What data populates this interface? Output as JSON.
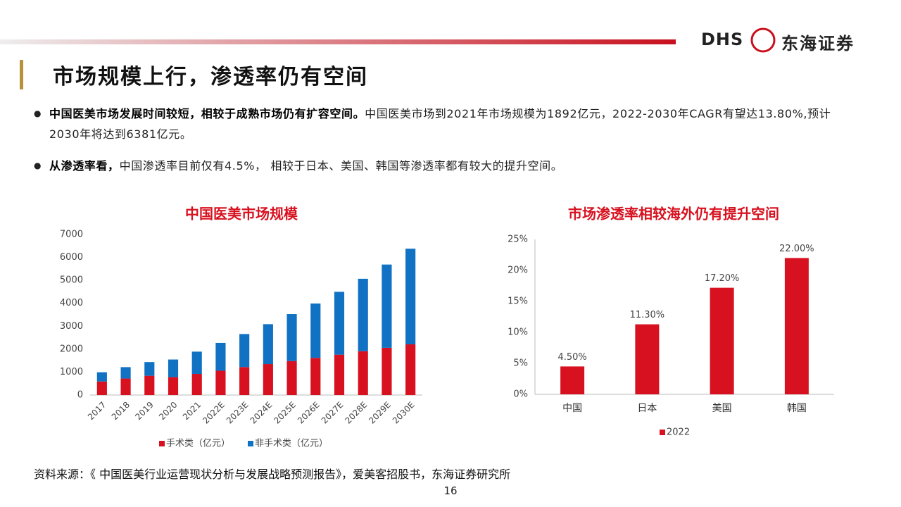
{
  "header": {
    "logo_en": "DHS",
    "logo_cn": "东海证券",
    "title": "市场规模上行，渗透率仍有空间"
  },
  "bullets": [
    {
      "bold": "中国医美市场发展时间较短，相较于成熟市场仍有扩容空间。",
      "text": "中国医美市场到2021年市场规模为1892亿元，2022-2030年CAGR有望达13.80%,预计2030年将达到6381亿元。"
    },
    {
      "bold": "从渗透率看，",
      "text": "中国渗透率目前仅有4.5%， 相较于日本、美国、韩国等渗透率都有较大的提升空间。"
    }
  ],
  "chart_data": [
    {
      "type": "bar",
      "stacked": true,
      "title": "中国医美市场规模",
      "categories": [
        "2017",
        "2018",
        "2019",
        "2020",
        "2021",
        "2022E",
        "2023E",
        "2024E",
        "2025E",
        "2026E",
        "2027E",
        "2028E",
        "2029E",
        "2030E"
      ],
      "series": [
        {
          "name": "手术类（亿元）",
          "color": "#d7111f",
          "values": [
            590,
            720,
            840,
            780,
            920,
            1060,
            1220,
            1350,
            1480,
            1620,
            1760,
            1910,
            2060,
            2210
          ]
        },
        {
          "name": "非手术类（亿元）",
          "color": "#1172c4",
          "values": [
            403,
            497,
            598,
            769,
            972,
            1214,
            1440,
            1740,
            2050,
            2370,
            2740,
            3160,
            3630,
            4171
          ]
        }
      ],
      "ylim": [
        0,
        7000
      ],
      "yticks": [
        0,
        1000,
        2000,
        3000,
        4000,
        5000,
        6000,
        7000
      ]
    },
    {
      "type": "bar",
      "stacked": false,
      "title": "市场渗透率相较海外仍有提升空间",
      "categories": [
        "中国",
        "日本",
        "美国",
        "韩国"
      ],
      "series": [
        {
          "name": "2022",
          "color": "#d7111f",
          "values": [
            4.5,
            11.3,
            17.2,
            22.0
          ],
          "value_labels": [
            "4.50%",
            "11.30%",
            "17.20%",
            "22.00%"
          ]
        }
      ],
      "ylim": [
        0,
        25
      ],
      "yticks": [
        {
          "value": 0,
          "label": "0%"
        },
        {
          "value": 5,
          "label": "5%"
        },
        {
          "value": 10,
          "label": "10%"
        },
        {
          "value": 15,
          "label": "15%"
        },
        {
          "value": 20,
          "label": "20%"
        },
        {
          "value": 25,
          "label": "25%"
        }
      ]
    }
  ],
  "source": "资料来源：《 中国医美行业运营现状分析与发展战略预测报告》，爱美客招股书，东海证券研究所",
  "page_number": "16"
}
